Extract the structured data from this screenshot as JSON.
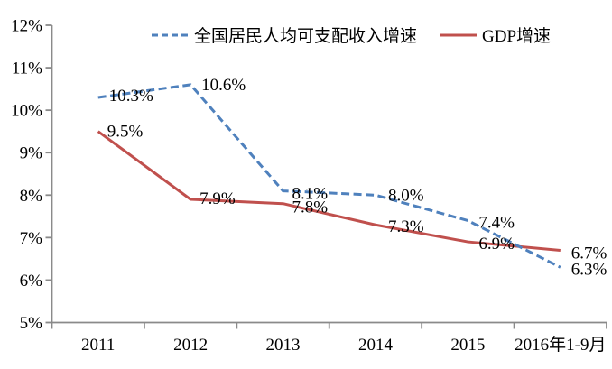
{
  "chart_data": {
    "type": "line",
    "title": "",
    "xlabel": "",
    "ylabel": "",
    "categories": [
      "2011",
      "2012",
      "2013",
      "2014",
      "2015",
      "2016年1-9月"
    ],
    "y_tick_labels": [
      "12%",
      "11%",
      "10%",
      "9%",
      "8%",
      "7%",
      "6%",
      "5%"
    ],
    "ylim": [
      5,
      12
    ],
    "grid": false,
    "legend_position": "top",
    "background_color": "#ffffff",
    "axis_color": "#8a8a8a",
    "text_color": "#000000",
    "series": [
      {
        "name": "GDP增速",
        "line_style": "solid",
        "color": "#C0504D",
        "values": [
          9.5,
          7.9,
          7.8,
          7.3,
          6.9,
          6.7
        ],
        "point_labels": [
          "9.5%",
          "7.9%",
          "7.8%",
          "7.3%",
          "6.9%",
          "6.7%"
        ],
        "label_offsets": [
          [
            10,
            6
          ],
          [
            10,
            5
          ],
          [
            10,
            10
          ],
          [
            14,
            8
          ],
          [
            12,
            8
          ],
          [
            12,
            9
          ]
        ]
      },
      {
        "name": "全国居民人均可支配收入增速",
        "line_style": "dashed",
        "color": "#4F81BD",
        "values": [
          10.3,
          10.6,
          8.1,
          8.0,
          7.4,
          6.3
        ],
        "point_labels": [
          "10.3%",
          "10.6%",
          "8.1%",
          "8.0%",
          "7.4%",
          "6.3%"
        ],
        "label_offsets": [
          [
            12,
            4
          ],
          [
            12,
            6
          ],
          [
            10,
            9
          ],
          [
            14,
            6
          ],
          [
            12,
            8
          ],
          [
            12,
            8
          ]
        ]
      }
    ],
    "legend": [
      {
        "label": "全国居民人均可支配收入增速",
        "line_style": "dashed",
        "color": "#4F81BD"
      },
      {
        "label": "GDP增速",
        "line_style": "solid",
        "color": "#C0504D"
      }
    ]
  }
}
